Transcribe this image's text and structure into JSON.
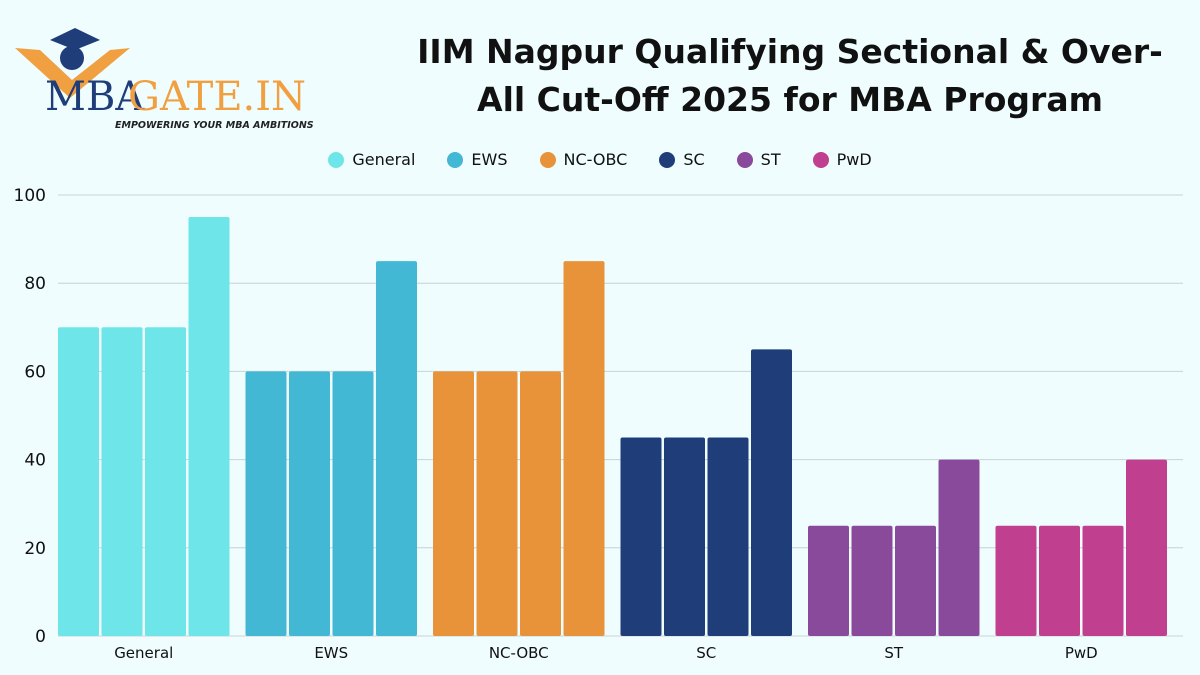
{
  "logo": {
    "brand_left": "MBA",
    "brand_right": "GATE.IN",
    "tagline": "EMPOWERING YOUR MBA AMBITIONS"
  },
  "chart_data": {
    "type": "bar",
    "title": "IIM Nagpur Qualifying Sectional & Over-All Cut-Off 2025 for MBA Program",
    "categories": [
      "General",
      "EWS",
      "NC-OBC",
      "SC",
      "ST",
      "PwD"
    ],
    "bars_per_category": [
      [
        70,
        70,
        70,
        95
      ],
      [
        60,
        60,
        60,
        85
      ],
      [
        60,
        60,
        60,
        85
      ],
      [
        45,
        45,
        45,
        65
      ],
      [
        25,
        25,
        25,
        40
      ],
      [
        25,
        25,
        25,
        40
      ]
    ],
    "legend": [
      {
        "name": "General",
        "color": "#6ee5e9"
      },
      {
        "name": "EWS",
        "color": "#42b8d5"
      },
      {
        "name": "NC-OBC",
        "color": "#e8933a"
      },
      {
        "name": "SC",
        "color": "#1f3d78"
      },
      {
        "name": "ST",
        "color": "#8a4a9c"
      },
      {
        "name": "PwD",
        "color": "#c0408f"
      }
    ],
    "legend_position": "top-center",
    "ylim": [
      0,
      100
    ],
    "yticks": [
      0,
      20,
      40,
      60,
      80,
      100
    ],
    "grid": true,
    "xlabel": "",
    "ylabel": ""
  }
}
